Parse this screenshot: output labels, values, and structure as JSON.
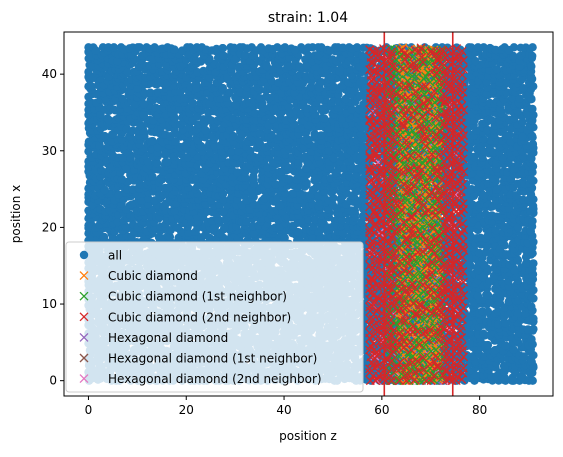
{
  "chart_data": {
    "type": "scatter",
    "title": "strain: 1.04",
    "xlabel": "position z",
    "ylabel": "position x",
    "xlim": [
      -5,
      95
    ],
    "ylim": [
      -2,
      45.5
    ],
    "xticks": [
      0,
      20,
      40,
      60,
      80
    ],
    "yticks": [
      0,
      10,
      20,
      30,
      40
    ],
    "grid": false,
    "legend_position": "lower-left",
    "vertical_lines": {
      "color": "#d62728",
      "x": [
        60.5,
        74.5
      ]
    },
    "series": [
      {
        "name": "all",
        "marker": "o",
        "color": "#1f77b4",
        "x_range": [
          0,
          91
        ],
        "y_range": [
          0,
          43.5
        ],
        "approx_point_count": 6000
      },
      {
        "name": "Cubic diamond",
        "marker": "x",
        "color": "#ff7f0e",
        "x_range": [
          63.5,
          72
        ],
        "y_range": [
          0,
          43.5
        ]
      },
      {
        "name": "Cubic diamond (1st neighbor)",
        "marker": "x",
        "color": "#2ca02c",
        "x_range": [
          61.5,
          73.5
        ],
        "y_range": [
          0,
          43.5
        ]
      },
      {
        "name": "Cubic diamond (2nd neighbor)",
        "marker": "x",
        "color": "#d62728",
        "x_range": [
          57.5,
          77
        ],
        "y_range": [
          0,
          43.5
        ]
      },
      {
        "name": "Hexagonal diamond",
        "marker": "x",
        "color": "#9467bd",
        "x_range": [
          62,
          72
        ],
        "y_range": [
          0,
          43.5
        ]
      },
      {
        "name": "Hexagonal diamond (1st neighbor)",
        "marker": "x",
        "color": "#8c564b",
        "x_range": [
          61,
          74
        ],
        "y_range": [
          0,
          43.5
        ]
      },
      {
        "name": "Hexagonal diamond (2nd neighbor)",
        "marker": "x",
        "color": "#e377c2",
        "x_range": [
          58,
          76
        ],
        "y_range": [
          0,
          43.5
        ]
      }
    ]
  }
}
